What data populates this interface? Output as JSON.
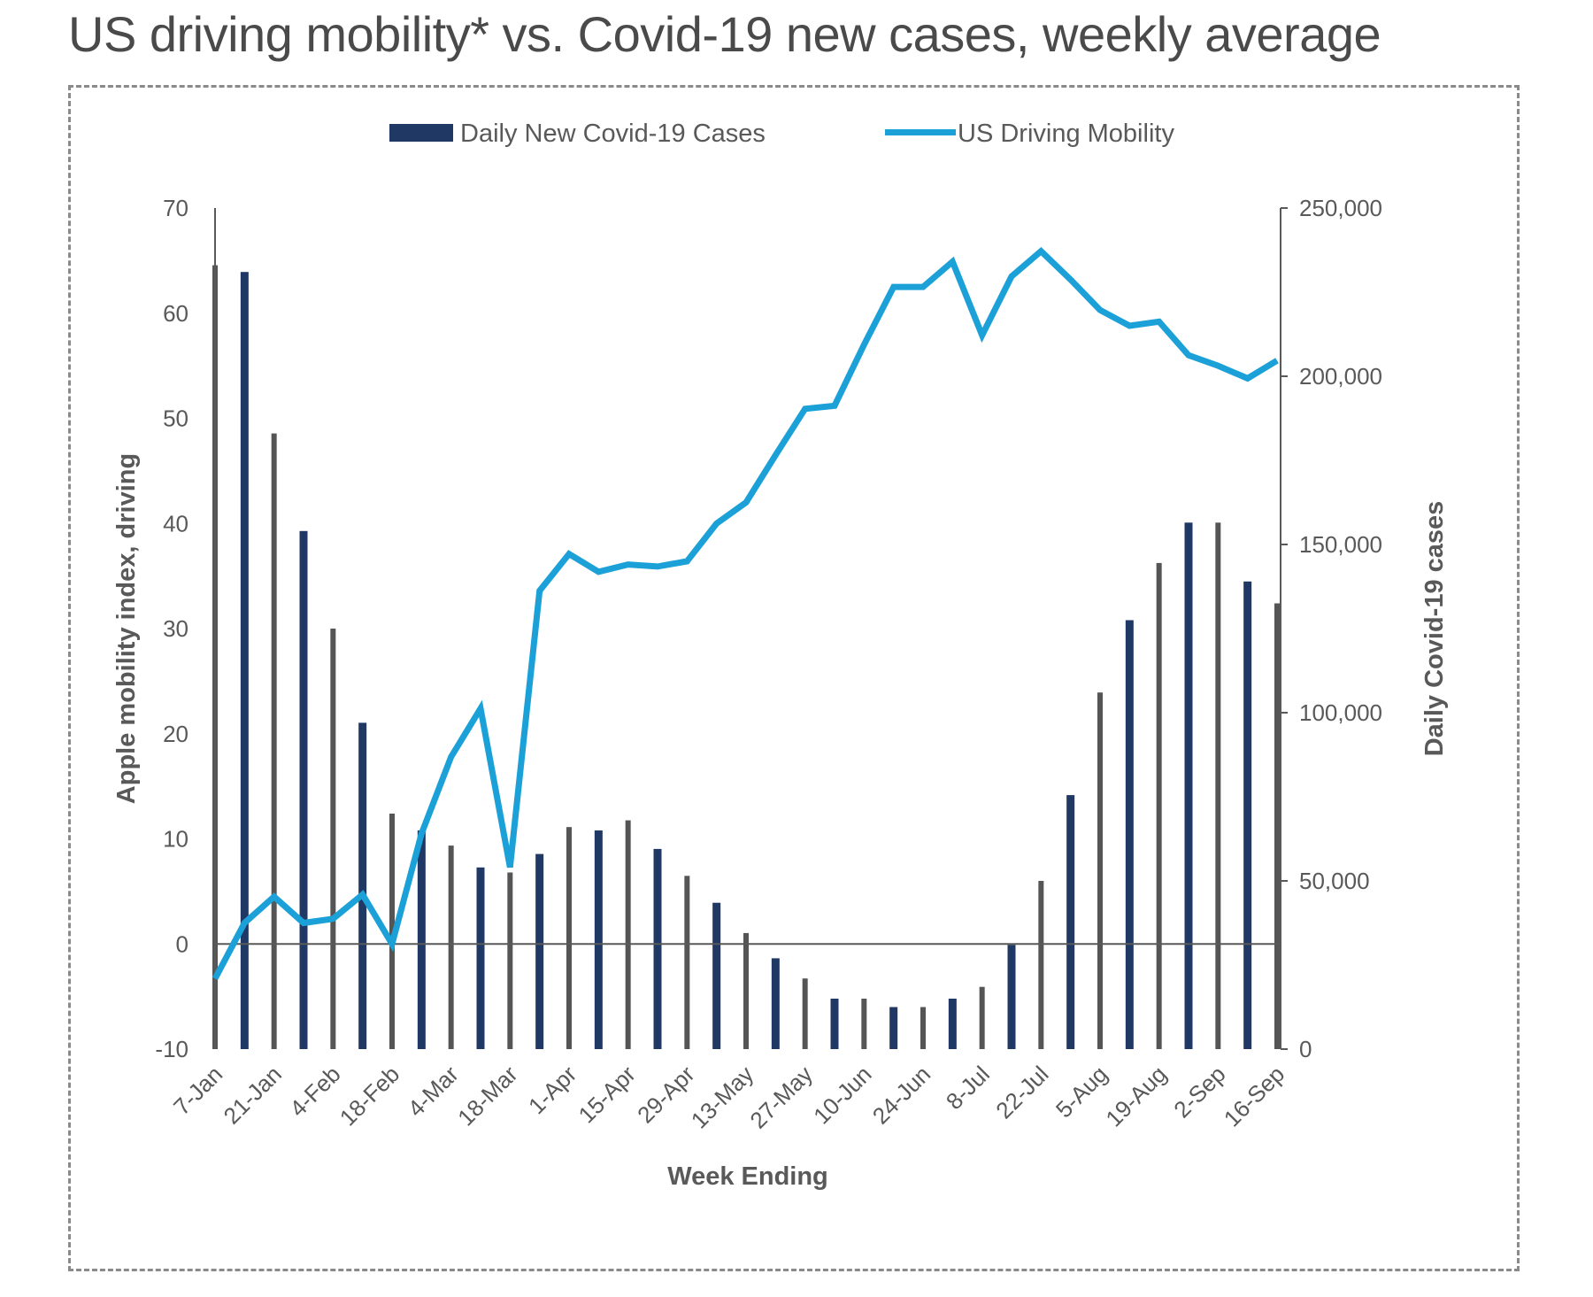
{
  "title": "US driving mobility* vs. Covid-19 new cases, weekly average",
  "chart_data": {
    "type": "bar+line",
    "title": "US driving mobility* vs. Covid-19 new cases, weekly average",
    "xlabel": "Week Ending",
    "ylabel_left": "Apple mobility index, driving",
    "ylabel_right": "Daily Covid-19 cases",
    "ylim_left": [
      -10,
      70
    ],
    "ylim_right": [
      0,
      250000
    ],
    "yticks_left": [
      "70",
      "60",
      "50",
      "40",
      "30",
      "20",
      "10",
      "0",
      "-10"
    ],
    "yticks_left_values": [
      70,
      60,
      50,
      40,
      30,
      20,
      10,
      0,
      -10
    ],
    "yticks_right": [
      "250,000",
      "200,000",
      "150,000",
      "100,000",
      "50,000",
      "0"
    ],
    "yticks_right_values": [
      250000,
      200000,
      150000,
      100000,
      50000,
      0
    ],
    "grid": false,
    "legend_position": "top-center",
    "legend": [
      {
        "label": "Daily New Covid-19 Cases",
        "color": "#1f3864",
        "kind": "bar"
      },
      {
        "label": "US Driving Mobility",
        "color": "#1ba1d8",
        "kind": "line"
      }
    ],
    "x_tick_labels": [
      "7-Jan",
      "21-Jan",
      "4-Feb",
      "18-Feb",
      "4-Mar",
      "18-Mar",
      "1-Apr",
      "15-Apr",
      "29-Apr",
      "13-May",
      "27-May",
      "10-Jun",
      "24-Jun",
      "8-Jul",
      "22-Jul",
      "5-Aug",
      "19-Aug",
      "2-Sep",
      "16-Sep"
    ],
    "categories": [
      "7-Jan",
      "14-Jan",
      "21-Jan",
      "28-Jan",
      "4-Feb",
      "11-Feb",
      "18-Feb",
      "25-Feb",
      "4-Mar",
      "11-Mar",
      "18-Mar",
      "25-Mar",
      "1-Apr",
      "8-Apr",
      "15-Apr",
      "22-Apr",
      "29-Apr",
      "6-May",
      "13-May",
      "20-May",
      "27-May",
      "3-Jun",
      "10-Jun",
      "17-Jun",
      "24-Jun",
      "1-Jul",
      "8-Jul",
      "15-Jul",
      "22-Jul",
      "29-Jul",
      "5-Aug",
      "12-Aug",
      "19-Aug",
      "26-Aug",
      "2-Sep",
      "9-Sep",
      "16-Sep"
    ],
    "series": [
      {
        "name": "Daily New Covid-19 Cases",
        "type": "bar",
        "axis": "right",
        "color": "#1f3864",
        "alt_color": "#555555",
        "values": [
          233000,
          231000,
          183000,
          154000,
          125000,
          97000,
          70000,
          65000,
          60500,
          54000,
          52500,
          58000,
          66000,
          65000,
          68000,
          59500,
          51500,
          43500,
          34500,
          27000,
          21000,
          15000,
          15000,
          12500,
          12500,
          15000,
          18500,
          31000,
          50000,
          75500,
          106000,
          127500,
          144500,
          156500,
          156500,
          139000,
          132500
        ]
      },
      {
        "name": "US Driving Mobility",
        "type": "line",
        "axis": "left",
        "color": "#1ba1d8",
        "values": [
          -3.3,
          2.0,
          4.5,
          2.0,
          2.4,
          4.7,
          0.0,
          10.5,
          17.8,
          22.4,
          7.3,
          33.6,
          37.1,
          35.4,
          36.1,
          35.9,
          36.4,
          40.0,
          42.0,
          46.5,
          50.9,
          51.2,
          57.0,
          62.5,
          62.5,
          64.9,
          57.9,
          63.5,
          65.9,
          63.2,
          60.3,
          58.8,
          59.2,
          56.0,
          55.0,
          53.8,
          55.5
        ]
      }
    ]
  }
}
